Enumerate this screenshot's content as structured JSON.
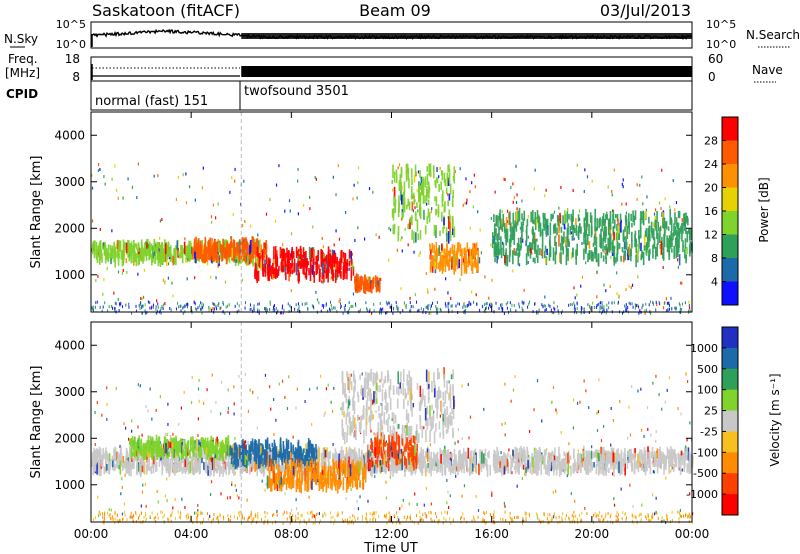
{
  "header": {
    "radar": "Saskatoon (fitACF)",
    "beam": "Beam 09",
    "date": "03/Jul/2013"
  },
  "noise_panel": {
    "left_label": "N.Sky",
    "right_label": "N.Search",
    "left_ticks": [
      "10^5",
      "10^0"
    ],
    "right_ticks": [
      "10^5",
      "10^0"
    ]
  },
  "freq_panel": {
    "left_label_1": "Freq.",
    "left_label_2": "[MHz]",
    "right_label": "Nave",
    "left_ticks": [
      "18",
      "8"
    ],
    "right_ticks": [
      "60",
      "0"
    ]
  },
  "cpid_panel": {
    "label": "CPID",
    "programs": [
      {
        "name": "normal (fast) 151",
        "start_hour": 0
      },
      {
        "name": "twofsound 3501",
        "start_hour": 6
      }
    ]
  },
  "chart_data": [
    {
      "type": "heatmap",
      "panel": "power",
      "xlabel": "",
      "ylabel": "Slant Range [km]",
      "x_unit": "hour UT",
      "xlim": [
        0,
        24
      ],
      "ylim": [
        200,
        4500
      ],
      "yticks": [
        "1000",
        "2000",
        "3000",
        "4000"
      ],
      "colorbar": {
        "label": "Power [dB]",
        "ticks": [
          "28",
          "24",
          "20",
          "16",
          "12",
          "8",
          "4"
        ],
        "colors": [
          "#ff0000",
          "#ff5a00",
          "#ff9000",
          "#e6d200",
          "#7fd32c",
          "#2fa05a",
          "#1c6aa8",
          "#1010ff"
        ]
      },
      "echo_regions": [
        {
          "t0": 0.0,
          "t1": 6.5,
          "r0": 1300,
          "r1": 1650,
          "level": "12-16"
        },
        {
          "t0": 4.0,
          "t1": 7.0,
          "r0": 1350,
          "r1": 1700,
          "level": "24-28"
        },
        {
          "t0": 6.5,
          "t1": 10.5,
          "r0": 950,
          "r1": 1500,
          "level": "28+"
        },
        {
          "t0": 10.5,
          "t1": 11.5,
          "r0": 700,
          "r1": 900,
          "level": "24-28"
        },
        {
          "t0": 12.0,
          "t1": 14.5,
          "r0": 1800,
          "r1": 3300,
          "level": "12-16"
        },
        {
          "t0": 13.5,
          "t1": 15.5,
          "r0": 1100,
          "r1": 1600,
          "level": "20-24"
        },
        {
          "t0": 16.0,
          "t1": 24.0,
          "r0": 1300,
          "r1": 2300,
          "level": "8-16"
        }
      ]
    },
    {
      "type": "heatmap",
      "panel": "velocity",
      "xlabel": "Time UT",
      "ylabel": "Slant Range [km]",
      "x_unit": "hour UT",
      "xlim": [
        0,
        24
      ],
      "ylim": [
        200,
        4500
      ],
      "yticks": [
        "1000",
        "2000",
        "3000",
        "4000"
      ],
      "xticks": [
        "00:00",
        "04:00",
        "08:00",
        "12:00",
        "16:00",
        "20:00",
        "00:00"
      ],
      "colorbar": {
        "label": "Velocity [m s⁻¹]",
        "ticks": [
          "1000",
          "500",
          "100",
          "25",
          "-25",
          "-100",
          "-500",
          "-1000"
        ],
        "colors": [
          "#2030c0",
          "#1c6aa8",
          "#2fa05a",
          "#7fd32c",
          "#c8c8c8",
          "#f5c020",
          "#ff8c00",
          "#ff4000",
          "#ff0000"
        ]
      },
      "echo_regions": [
        {
          "t0": 0.0,
          "t1": 24.0,
          "r0": 1300,
          "r1": 1700,
          "level": "ground scatter"
        },
        {
          "t0": 1.5,
          "t1": 5.5,
          "r0": 1650,
          "r1": 1950,
          "level": "100-500"
        },
        {
          "t0": 5.5,
          "t1": 9.0,
          "r0": 1450,
          "r1": 1900,
          "level": "500-1000"
        },
        {
          "t0": 7.0,
          "t1": 11.0,
          "r0": 950,
          "r1": 1450,
          "level": "-100 to -500"
        },
        {
          "t0": 11.0,
          "t1": 13.0,
          "r0": 1400,
          "r1": 2000,
          "level": "-500 to -1000"
        },
        {
          "t0": 10.0,
          "t1": 14.5,
          "r0": 2000,
          "r1": 3400,
          "level": "ground scatter"
        }
      ]
    }
  ]
}
